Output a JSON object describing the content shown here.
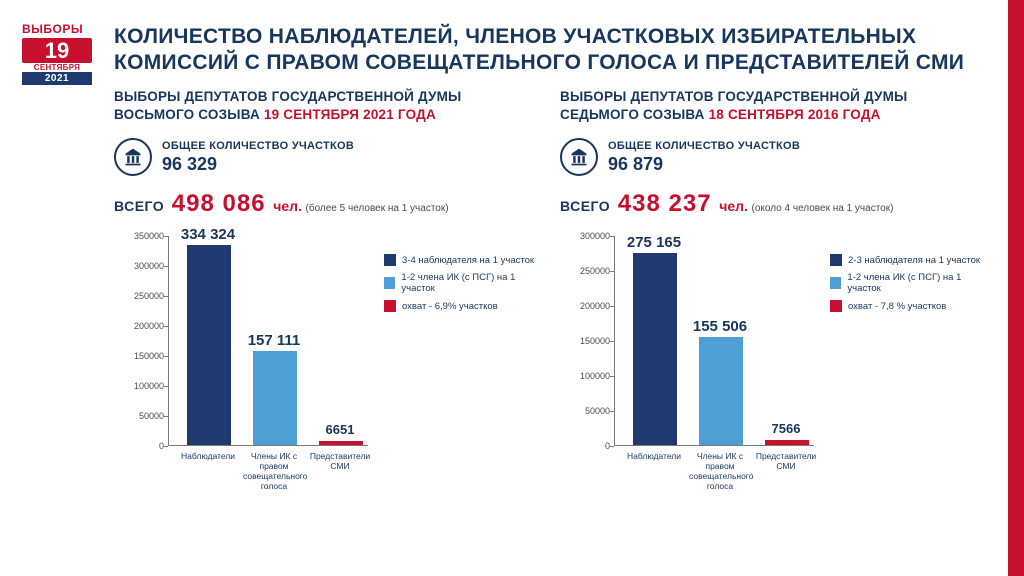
{
  "logo": {
    "l1": "ВЫБОРЫ",
    "l2": "19",
    "l3": "СЕНТЯБРЯ",
    "l4": "2021"
  },
  "title": "КОЛИЧЕСТВО НАБЛЮДАТЕЛЕЙ, ЧЛЕНОВ УЧАСТКОВЫХ ИЗБИРАТЕЛЬНЫХ КОМИССИЙ С ПРАВОМ СОВЕЩАТЕЛЬНОГО ГОЛОСА И ПРЕДСТАВИТЕЛЕЙ СМИ",
  "colors": {
    "navy": "#1f3a6e",
    "dark_navy": "#17375e",
    "sky": "#4f9fd6",
    "red": "#c8102e",
    "grid": "#7a7a7a",
    "text_grey": "#4a4a4a",
    "bg": "#ffffff"
  },
  "panels": [
    {
      "subtitle_pre": "ВЫБОРЫ ДЕПУТАТОВ ГОСУДАРСТВЕННОЙ ДУМЫ ВОСЬМОГО СОЗЫВА ",
      "subtitle_date": "19 СЕНТЯБРЯ 2021 ГОДА",
      "stations_label": "ОБЩЕЕ КОЛИЧЕСТВО УЧАСТКОВ",
      "stations_value": "96 329",
      "total_label": "ВСЕГО",
      "total_value": "498 086",
      "total_unit": "чел.",
      "total_note": "(более 5 человек на 1 участок)",
      "chart": {
        "type": "bar",
        "ymax": 350000,
        "ytick_step": 50000,
        "yticks": [
          "0",
          "50000",
          "100000",
          "150000",
          "200000",
          "250000",
          "300000",
          "350000"
        ],
        "categories": [
          "Наблюдатели",
          "Члены ИК с правом совещательного голоса",
          "Представители СМИ"
        ],
        "values": [
          334324,
          157111,
          6651
        ],
        "value_labels": [
          "334 324",
          "157 111",
          "6651"
        ],
        "bar_colors": [
          "#1f3a6e",
          "#4f9fd6",
          "#c8102e"
        ],
        "value_fontsizes": [
          15,
          15,
          13
        ],
        "legend": [
          {
            "color": "#1f3a6e",
            "label": "3-4 наблюдателя на 1 участок"
          },
          {
            "color": "#4f9fd6",
            "label": "1-2 члена ИК (с ПСГ) на 1 участок"
          },
          {
            "color": "#c8102e",
            "label": "охват - 6,9% участков"
          }
        ]
      }
    },
    {
      "subtitle_pre": "ВЫБОРЫ ДЕПУТАТОВ ГОСУДАРСТВЕННОЙ ДУМЫ СЕДЬМОГО СОЗЫВА ",
      "subtitle_date": "18 СЕНТЯБРЯ 2016 ГОДА",
      "stations_label": "ОБЩЕЕ КОЛИЧЕСТВО УЧАСТКОВ",
      "stations_value": "96 879",
      "total_label": "ВСЕГО",
      "total_value": "438 237",
      "total_unit": "чел.",
      "total_note": "(около 4 человек на 1 участок)",
      "chart": {
        "type": "bar",
        "ymax": 300000,
        "ytick_step": 50000,
        "yticks": [
          "0",
          "50000",
          "100000",
          "150000",
          "200000",
          "250000",
          "300000"
        ],
        "categories": [
          "Наблюдатели",
          "Члены ИК с правом совещательного голоса",
          "Представители СМИ"
        ],
        "values": [
          275165,
          155506,
          7566
        ],
        "value_labels": [
          "275 165",
          "155 506",
          "7566"
        ],
        "bar_colors": [
          "#1f3a6e",
          "#4f9fd6",
          "#c8102e"
        ],
        "value_fontsizes": [
          15,
          15,
          13
        ],
        "legend": [
          {
            "color": "#1f3a6e",
            "label": "2-3 наблюдателя на 1 участок"
          },
          {
            "color": "#4f9fd6",
            "label": "1-2 члена ИК (с ПСГ) на 1 участок"
          },
          {
            "color": "#c8102e",
            "label": "охват - 7,8 % участков"
          }
        ]
      }
    }
  ]
}
